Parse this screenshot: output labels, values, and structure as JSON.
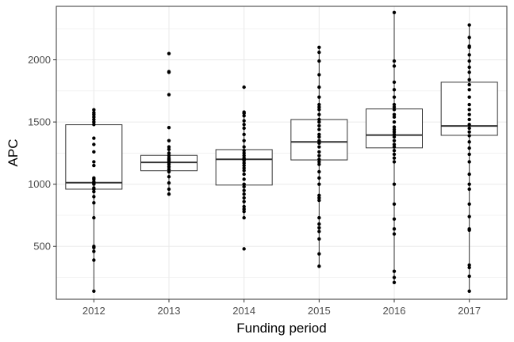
{
  "chart_data": {
    "type": "boxplot",
    "xlabel": "Funding period",
    "ylabel": "APC",
    "ylim": [
      75,
      2430
    ],
    "y_ticks": [
      500,
      1000,
      1500,
      2000
    ],
    "y_tick_labels": [
      "500",
      "1000",
      "1500",
      "2000"
    ],
    "grid": true,
    "legend": "none",
    "colors": {
      "panel_border": "#333333",
      "grid": "#ebebeb",
      "box": "#333333",
      "point": "#000000"
    },
    "categories": [
      "2012",
      "2013",
      "2014",
      "2015",
      "2016",
      "2017"
    ],
    "boxes": [
      {
        "category": "2012",
        "q1": 960,
        "median": 1012,
        "q3": 1478,
        "whisker_low": 140,
        "whisker_high": 1598,
        "points": [
          140,
          390,
          460,
          490,
          500,
          730,
          850,
          900,
          940,
          960,
          970,
          1000,
          1010,
          1020,
          1040,
          1050,
          1150,
          1180,
          1260,
          1320,
          1370,
          1480,
          1500,
          1520,
          1540,
          1560,
          1575,
          1598
        ]
      },
      {
        "category": "2013",
        "q1": 1108,
        "median": 1175,
        "q3": 1232,
        "whisker_low": 920,
        "whisker_high": 1300,
        "points": [
          920,
          960,
          1010,
          1060,
          1100,
          1120,
          1140,
          1160,
          1175,
          1190,
          1200,
          1210,
          1230,
          1250,
          1280,
          1300,
          1350,
          1455,
          1720,
          1900,
          1905,
          2050
        ]
      },
      {
        "category": "2014",
        "q1": 993,
        "median": 1200,
        "q3": 1278,
        "whisker_low": 730,
        "whisker_high": 1580,
        "points": [
          480,
          730,
          780,
          800,
          820,
          860,
          890,
          920,
          950,
          980,
          1000,
          1040,
          1080,
          1110,
          1130,
          1150,
          1170,
          1190,
          1200,
          1210,
          1230,
          1250,
          1270,
          1300,
          1350,
          1400,
          1450,
          1480,
          1510,
          1550,
          1570,
          1580,
          1780
        ]
      },
      {
        "category": "2015",
        "q1": 1195,
        "median": 1340,
        "q3": 1520,
        "whisker_low": 340,
        "whisker_high": 2100,
        "points": [
          340,
          440,
          560,
          620,
          650,
          680,
          730,
          870,
          890,
          910,
          1000,
          1050,
          1100,
          1160,
          1180,
          1200,
          1230,
          1260,
          1300,
          1330,
          1350,
          1380,
          1400,
          1440,
          1470,
          1500,
          1520,
          1560,
          1600,
          1620,
          1640,
          1700,
          1780,
          1880,
          1990,
          2060,
          2100
        ]
      },
      {
        "category": "2016",
        "q1": 1292,
        "median": 1395,
        "q3": 1605,
        "whisker_low": 210,
        "whisker_high": 2380,
        "points": [
          210,
          250,
          300,
          600,
          640,
          720,
          840,
          1000,
          1180,
          1210,
          1240,
          1270,
          1300,
          1320,
          1350,
          1380,
          1400,
          1420,
          1440,
          1460,
          1500,
          1540,
          1560,
          1600,
          1620,
          1640,
          1700,
          1760,
          1820,
          1950,
          1990,
          2380
        ]
      },
      {
        "category": "2017",
        "q1": 1393,
        "median": 1468,
        "q3": 1820,
        "whisker_low": 140,
        "whisker_high": 2280,
        "points": [
          140,
          260,
          330,
          350,
          630,
          640,
          740,
          840,
          960,
          1000,
          1080,
          1180,
          1240,
          1290,
          1340,
          1390,
          1420,
          1450,
          1480,
          1520,
          1560,
          1600,
          1640,
          1700,
          1760,
          1800,
          1840,
          1900,
          1940,
          1990,
          2040,
          2100,
          2110,
          2180,
          2280
        ]
      }
    ]
  }
}
